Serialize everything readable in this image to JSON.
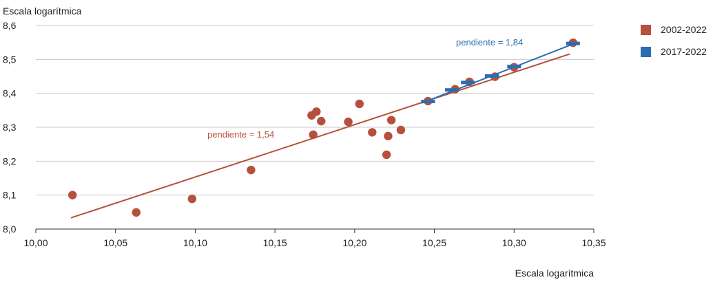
{
  "chart_data": {
    "type": "scatter",
    "ylabel": "Escala logarítmica",
    "xlabel": "Escala logarítmica",
    "xlim": [
      10.0,
      10.35
    ],
    "ylim": [
      8.0,
      8.6
    ],
    "x_ticks": [
      "10,00",
      "10,05",
      "10,10",
      "10,15",
      "10,20",
      "10,25",
      "10,30",
      "10,35"
    ],
    "y_ticks": [
      "8,0",
      "8,1",
      "8,2",
      "8,3",
      "8,4",
      "8,5",
      "8,6"
    ],
    "grid": "horizontal",
    "legend_position": "top-right",
    "series": [
      {
        "name": "2002-2022",
        "color": "#b5503c",
        "marker": "circle",
        "points": [
          [
            10.023,
            8.1
          ],
          [
            10.063,
            8.049
          ],
          [
            10.098,
            8.089
          ],
          [
            10.135,
            8.174
          ],
          [
            10.173,
            8.335
          ],
          [
            10.174,
            8.278
          ],
          [
            10.176,
            8.346
          ],
          [
            10.179,
            8.318
          ],
          [
            10.196,
            8.316
          ],
          [
            10.203,
            8.369
          ],
          [
            10.211,
            8.285
          ],
          [
            10.22,
            8.219
          ],
          [
            10.221,
            8.274
          ],
          [
            10.223,
            8.321
          ],
          [
            10.229,
            8.292
          ],
          [
            10.246,
            8.377
          ],
          [
            10.263,
            8.412
          ],
          [
            10.272,
            8.434
          ],
          [
            10.288,
            8.449
          ],
          [
            10.3,
            8.477
          ],
          [
            10.337,
            8.549
          ]
        ],
        "trendline": {
          "x": [
            10.022,
            10.335
          ],
          "y": [
            8.033,
            8.516
          ],
          "label": "pendiente = 1,54"
        }
      },
      {
        "name": "2017-2022",
        "color": "#2a6db0",
        "marker": "dash",
        "points": [
          [
            10.246,
            8.376
          ],
          [
            10.261,
            8.41
          ],
          [
            10.271,
            8.432
          ],
          [
            10.286,
            8.451
          ],
          [
            10.3,
            8.479
          ],
          [
            10.337,
            8.547
          ]
        ],
        "trendline": {
          "x": [
            10.242,
            10.339
          ],
          "y": [
            8.371,
            8.549
          ],
          "label": "pendiente = 1,84"
        }
      }
    ]
  },
  "legend": {
    "items": [
      {
        "label": "2002-2022",
        "color": "#b5503c"
      },
      {
        "label": "2017-2022",
        "color": "#2a6db0"
      }
    ]
  }
}
